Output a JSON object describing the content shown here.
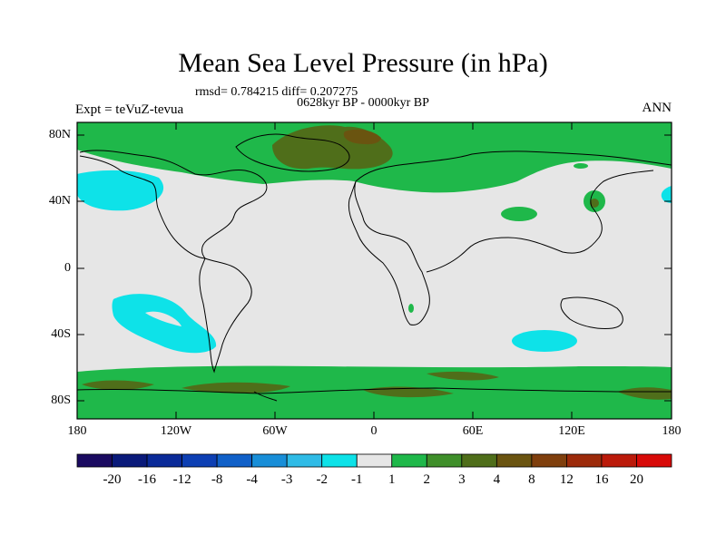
{
  "title": "Mean Sea Level Pressure (in hPa)",
  "stats": "rmsd= 0.784215 diff= 0.207275",
  "period": "0628kyr BP - 0000kyr BP",
  "experiment": "Expt = teVuZ-tevua",
  "season": "ANN",
  "lat_labels": [
    "80N",
    "40N",
    "0",
    "40S",
    "80S"
  ],
  "lon_labels": [
    "180",
    "120W",
    "60W",
    "0",
    "60E",
    "120E",
    "180"
  ],
  "colorbar": {
    "colors": [
      "#1a0a60",
      "#0a1a7a",
      "#0a2a98",
      "#0d3fb3",
      "#1060c8",
      "#188ed8",
      "#2fbbe6",
      "#0ee2e8",
      "#e6e6e6",
      "#1fb84a",
      "#3f8f2a",
      "#4f6e1a",
      "#6a5410",
      "#7f3f0d",
      "#9c2a0a",
      "#bb1a0a",
      "#d80a08"
    ],
    "labels": [
      "-20",
      "-16",
      "-12",
      "-8",
      "-4",
      "-3",
      "-2",
      "-1",
      "1",
      "2",
      "3",
      "4",
      "8",
      "12",
      "16",
      "20"
    ]
  }
}
